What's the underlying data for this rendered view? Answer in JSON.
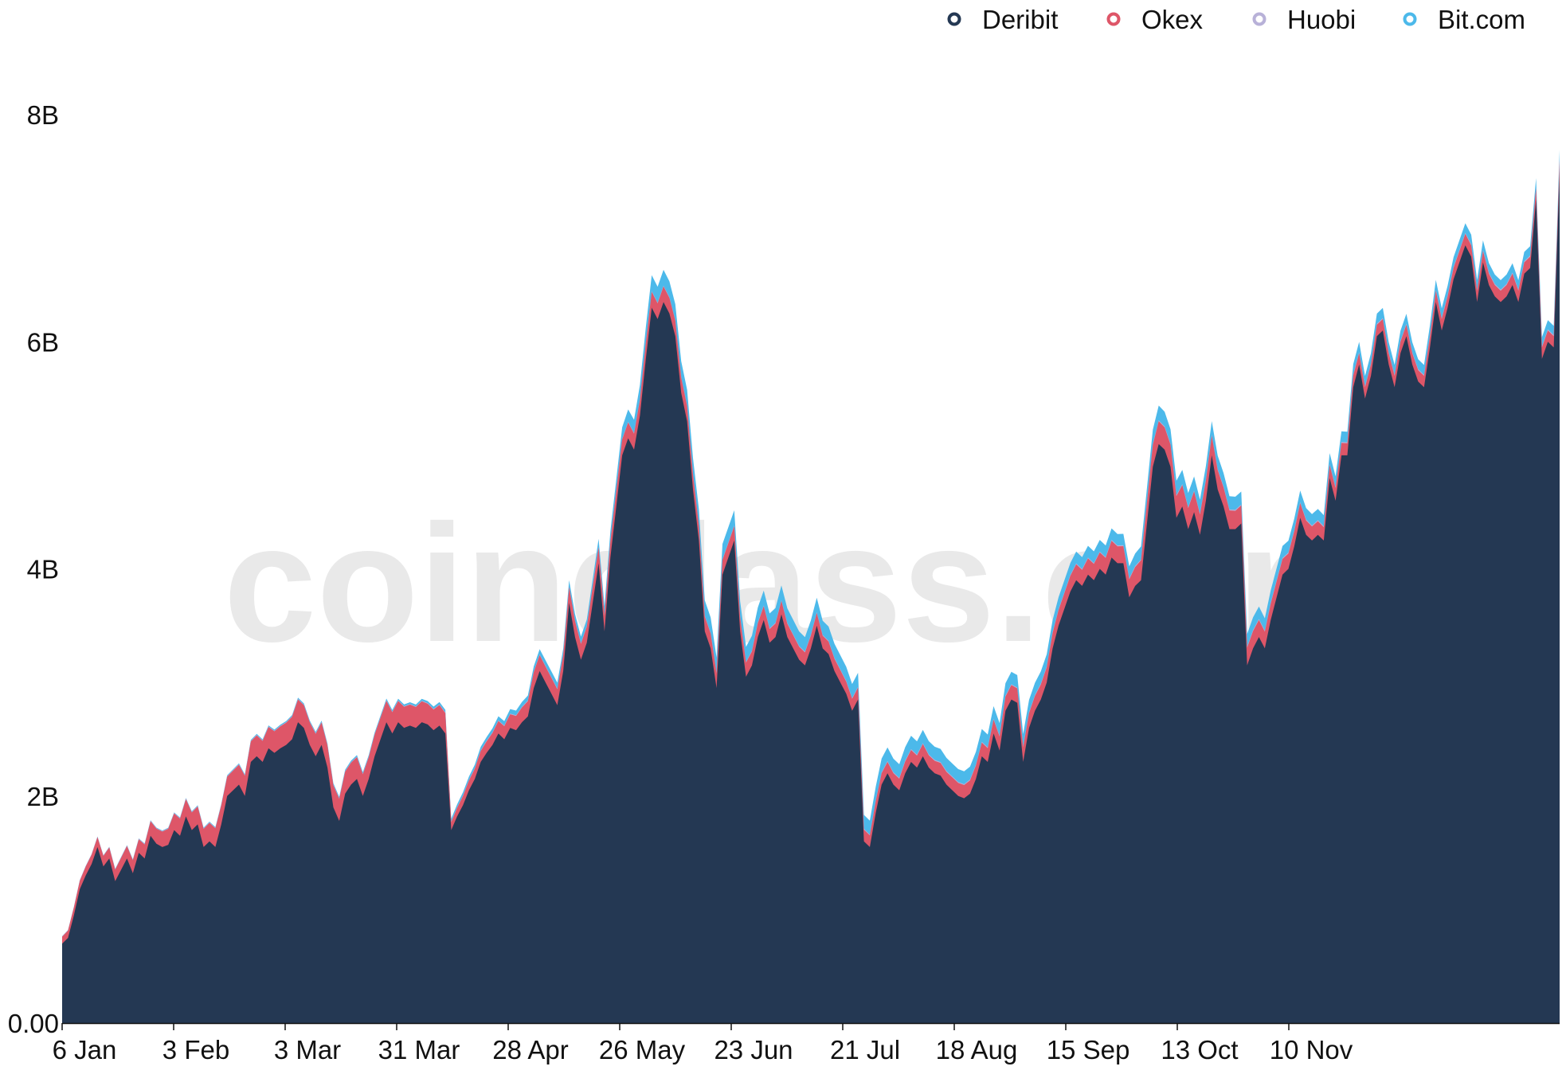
{
  "watermark": "coinglass.com",
  "colors": {
    "Deribit": "#243853",
    "Okex": "#de5668",
    "Huobi": "#b8b1d8",
    "Bit.com": "#4cb9ea",
    "axis": "#111111"
  },
  "chart_data": {
    "type": "area",
    "stacked": true,
    "title": "",
    "xlabel": "",
    "ylabel": "",
    "ylim": [
      0,
      8800000000
    ],
    "grid": false,
    "legend_position": "top-right",
    "x_start": "6 Jan",
    "x_end": "30 Nov",
    "yticks": [
      {
        "label": "0.00",
        "value": 0
      },
      {
        "label": "2B",
        "value": 2000000000
      },
      {
        "label": "4B",
        "value": 4000000000
      },
      {
        "label": "6B",
        "value": 6000000000
      },
      {
        "label": "8B",
        "value": 8000000000
      }
    ],
    "xticks": [
      {
        "label": "6 Jan",
        "day": 0
      },
      {
        "label": "3 Feb",
        "day": 28
      },
      {
        "label": "3 Mar",
        "day": 56
      },
      {
        "label": "31 Mar",
        "day": 84
      },
      {
        "label": "28 Apr",
        "day": 112
      },
      {
        "label": "26 May",
        "day": 140
      },
      {
        "label": "23 Jun",
        "day": 168
      },
      {
        "label": "21 Jul",
        "day": 196
      },
      {
        "label": "18 Aug",
        "day": 224
      },
      {
        "label": "15 Sep",
        "day": 252
      },
      {
        "label": "13 Oct",
        "day": 280
      },
      {
        "label": "10 Nov",
        "day": 308
      }
    ],
    "series": [
      {
        "name": "Deribit",
        "points": [
          [
            0,
            0.7
          ],
          [
            1,
            0.75
          ],
          [
            2,
            0.95
          ],
          [
            3,
            1.18
          ],
          [
            4,
            1.3
          ],
          [
            5,
            1.4
          ],
          [
            6,
            1.55
          ],
          [
            7,
            1.38
          ],
          [
            8,
            1.45
          ],
          [
            9,
            1.25
          ],
          [
            10,
            1.35
          ],
          [
            11,
            1.45
          ],
          [
            12,
            1.32
          ],
          [
            13,
            1.5
          ],
          [
            14,
            1.45
          ],
          [
            15,
            1.65
          ],
          [
            16,
            1.58
          ],
          [
            17,
            1.55
          ],
          [
            18,
            1.57
          ],
          [
            19,
            1.7
          ],
          [
            20,
            1.65
          ],
          [
            21,
            1.82
          ],
          [
            22,
            1.7
          ],
          [
            23,
            1.75
          ],
          [
            24,
            1.55
          ],
          [
            25,
            1.6
          ],
          [
            26,
            1.55
          ],
          [
            27,
            1.75
          ],
          [
            28,
            2.0
          ],
          [
            29,
            2.05
          ],
          [
            30,
            2.1
          ],
          [
            31,
            2.0
          ],
          [
            32,
            2.3
          ],
          [
            33,
            2.35
          ],
          [
            34,
            2.3
          ],
          [
            35,
            2.42
          ],
          [
            36,
            2.38
          ],
          [
            37,
            2.42
          ],
          [
            38,
            2.45
          ],
          [
            39,
            2.5
          ],
          [
            40,
            2.65
          ],
          [
            41,
            2.6
          ],
          [
            42,
            2.45
          ],
          [
            43,
            2.35
          ],
          [
            44,
            2.45
          ],
          [
            45,
            2.25
          ],
          [
            46,
            1.9
          ],
          [
            47,
            1.78
          ],
          [
            48,
            2.02
          ],
          [
            49,
            2.1
          ],
          [
            50,
            2.15
          ],
          [
            51,
            2.0
          ],
          [
            52,
            2.15
          ],
          [
            53,
            2.35
          ],
          [
            54,
            2.5
          ],
          [
            55,
            2.65
          ],
          [
            56,
            2.55
          ],
          [
            57,
            2.65
          ],
          [
            58,
            2.6
          ],
          [
            59,
            2.62
          ],
          [
            60,
            2.6
          ],
          [
            61,
            2.65
          ],
          [
            62,
            2.63
          ],
          [
            63,
            2.58
          ],
          [
            64,
            2.62
          ],
          [
            65,
            2.55
          ],
          [
            66,
            1.7
          ],
          [
            67,
            1.82
          ],
          [
            68,
            1.92
          ],
          [
            69,
            2.05
          ],
          [
            70,
            2.15
          ],
          [
            71,
            2.3
          ],
          [
            72,
            2.38
          ],
          [
            73,
            2.45
          ],
          [
            74,
            2.55
          ],
          [
            75,
            2.5
          ],
          [
            76,
            2.6
          ],
          [
            77,
            2.58
          ],
          [
            78,
            2.65
          ],
          [
            79,
            2.7
          ],
          [
            80,
            2.95
          ],
          [
            81,
            3.1
          ],
          [
            82,
            3.0
          ],
          [
            83,
            2.9
          ],
          [
            84,
            2.8
          ],
          [
            85,
            3.1
          ],
          [
            86,
            3.7
          ],
          [
            87,
            3.4
          ],
          [
            88,
            3.2
          ],
          [
            89,
            3.35
          ],
          [
            90,
            3.7
          ],
          [
            91,
            4.05
          ],
          [
            92,
            3.45
          ],
          [
            93,
            4.1
          ],
          [
            94,
            4.55
          ],
          [
            95,
            5.0
          ],
          [
            96,
            5.15
          ],
          [
            97,
            5.05
          ],
          [
            98,
            5.35
          ],
          [
            99,
            5.85
          ],
          [
            100,
            6.3
          ],
          [
            101,
            6.2
          ],
          [
            102,
            6.35
          ],
          [
            103,
            6.25
          ],
          [
            104,
            6.05
          ],
          [
            105,
            5.55
          ],
          [
            106,
            5.3
          ],
          [
            107,
            4.7
          ],
          [
            108,
            4.25
          ],
          [
            109,
            3.45
          ],
          [
            110,
            3.3
          ],
          [
            111,
            2.95
          ],
          [
            112,
            3.95
          ],
          [
            113,
            4.1
          ],
          [
            114,
            4.25
          ],
          [
            115,
            3.45
          ],
          [
            116,
            3.05
          ],
          [
            117,
            3.15
          ],
          [
            118,
            3.4
          ],
          [
            119,
            3.55
          ],
          [
            120,
            3.35
          ],
          [
            121,
            3.4
          ],
          [
            122,
            3.6
          ],
          [
            123,
            3.4
          ],
          [
            124,
            3.3
          ],
          [
            125,
            3.2
          ],
          [
            126,
            3.15
          ],
          [
            127,
            3.3
          ],
          [
            128,
            3.5
          ],
          [
            129,
            3.3
          ],
          [
            130,
            3.25
          ],
          [
            131,
            3.1
          ],
          [
            132,
            3.0
          ],
          [
            133,
            2.9
          ],
          [
            134,
            2.75
          ],
          [
            135,
            2.85
          ],
          [
            136,
            1.6
          ],
          [
            137,
            1.55
          ],
          [
            138,
            1.85
          ],
          [
            139,
            2.1
          ],
          [
            140,
            2.2
          ],
          [
            141,
            2.1
          ],
          [
            142,
            2.05
          ],
          [
            143,
            2.2
          ],
          [
            144,
            2.3
          ],
          [
            145,
            2.25
          ],
          [
            146,
            2.35
          ],
          [
            147,
            2.25
          ],
          [
            148,
            2.2
          ],
          [
            149,
            2.18
          ],
          [
            150,
            2.1
          ],
          [
            151,
            2.05
          ],
          [
            152,
            2.0
          ],
          [
            153,
            1.98
          ],
          [
            154,
            2.02
          ],
          [
            155,
            2.15
          ],
          [
            156,
            2.35
          ],
          [
            157,
            2.3
          ],
          [
            158,
            2.55
          ],
          [
            159,
            2.4
          ],
          [
            160,
            2.75
          ],
          [
            161,
            2.85
          ],
          [
            162,
            2.82
          ],
          [
            163,
            2.3
          ],
          [
            164,
            2.6
          ],
          [
            165,
            2.75
          ],
          [
            166,
            2.85
          ],
          [
            167,
            3.0
          ],
          [
            168,
            3.3
          ],
          [
            169,
            3.5
          ],
          [
            170,
            3.65
          ],
          [
            171,
            3.8
          ],
          [
            172,
            3.9
          ],
          [
            173,
            3.85
          ],
          [
            174,
            3.95
          ],
          [
            175,
            3.9
          ],
          [
            176,
            4.0
          ],
          [
            177,
            3.95
          ],
          [
            178,
            4.1
          ],
          [
            179,
            4.05
          ],
          [
            180,
            4.05
          ],
          [
            181,
            3.75
          ],
          [
            182,
            3.85
          ],
          [
            183,
            3.9
          ],
          [
            184,
            4.4
          ],
          [
            185,
            4.9
          ],
          [
            186,
            5.1
          ],
          [
            187,
            5.05
          ],
          [
            188,
            4.9
          ],
          [
            189,
            4.45
          ],
          [
            190,
            4.55
          ],
          [
            191,
            4.35
          ],
          [
            192,
            4.5
          ],
          [
            193,
            4.3
          ],
          [
            194,
            4.6
          ],
          [
            195,
            5.0
          ],
          [
            196,
            4.7
          ],
          [
            197,
            4.55
          ],
          [
            198,
            4.35
          ],
          [
            199,
            4.35
          ],
          [
            200,
            4.4
          ],
          [
            201,
            3.15
          ],
          [
            202,
            3.3
          ],
          [
            203,
            3.4
          ],
          [
            204,
            3.3
          ],
          [
            205,
            3.55
          ],
          [
            206,
            3.75
          ],
          [
            207,
            3.95
          ],
          [
            208,
            4.0
          ],
          [
            209,
            4.2
          ],
          [
            210,
            4.45
          ],
          [
            211,
            4.3
          ],
          [
            212,
            4.25
          ],
          [
            213,
            4.3
          ],
          [
            214,
            4.25
          ],
          [
            215,
            4.8
          ],
          [
            216,
            4.6
          ],
          [
            217,
            5.0
          ],
          [
            218,
            5.0
          ],
          [
            219,
            5.6
          ],
          [
            220,
            5.8
          ],
          [
            221,
            5.5
          ],
          [
            222,
            5.7
          ],
          [
            223,
            6.05
          ],
          [
            224,
            6.1
          ],
          [
            225,
            5.8
          ],
          [
            226,
            5.6
          ],
          [
            227,
            5.9
          ],
          [
            228,
            6.05
          ],
          [
            229,
            5.8
          ],
          [
            230,
            5.65
          ],
          [
            231,
            5.6
          ],
          [
            232,
            5.95
          ],
          [
            233,
            6.35
          ],
          [
            234,
            6.1
          ],
          [
            235,
            6.3
          ],
          [
            236,
            6.55
          ],
          [
            237,
            6.7
          ],
          [
            238,
            6.85
          ],
          [
            239,
            6.75
          ],
          [
            240,
            6.35
          ],
          [
            241,
            6.7
          ],
          [
            242,
            6.5
          ],
          [
            243,
            6.4
          ],
          [
            244,
            6.35
          ],
          [
            245,
            6.4
          ],
          [
            246,
            6.5
          ],
          [
            247,
            6.35
          ],
          [
            248,
            6.6
          ],
          [
            249,
            6.65
          ],
          [
            250,
            7.25
          ],
          [
            251,
            5.85
          ],
          [
            252,
            6.0
          ],
          [
            253,
            5.95
          ],
          [
            254,
            7.5
          ]
        ]
      },
      {
        "name": "Okex",
        "points": [
          [
            0,
            0.06
          ],
          [
            20,
            0.15
          ],
          [
            40,
            0.2
          ],
          [
            65,
            0.18
          ],
          [
            66,
            0.07
          ],
          [
            80,
            0.14
          ],
          [
            100,
            0.14
          ],
          [
            140,
            0.1
          ],
          [
            180,
            0.15
          ],
          [
            186,
            0.2
          ],
          [
            220,
            0.1
          ],
          [
            254,
            0.1
          ]
        ]
      },
      {
        "name": "Huobi",
        "points": [
          [
            0,
            0.005
          ],
          [
            254,
            0.01
          ]
        ]
      },
      {
        "name": "Bit.com",
        "points": [
          [
            0,
            0.0
          ],
          [
            60,
            0.015
          ],
          [
            90,
            0.06
          ],
          [
            100,
            0.14
          ],
          [
            140,
            0.12
          ],
          [
            180,
            0.1
          ],
          [
            186,
            0.13
          ],
          [
            220,
            0.09
          ],
          [
            254,
            0.08
          ]
        ]
      }
    ]
  }
}
